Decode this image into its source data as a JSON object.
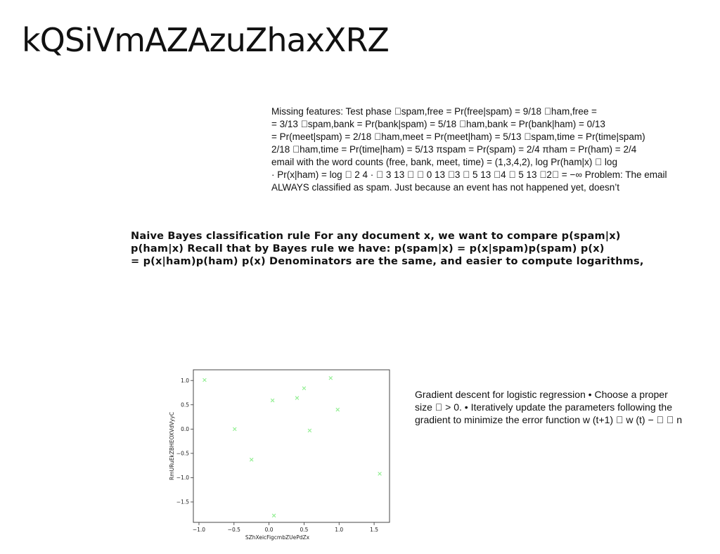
{
  "page": {
    "title": "kQSiVmAZAzuZhaxXRZ"
  },
  "block_missing_features": {
    "lines": [
      "Missing features: Test phase \u0000spam,free = Pr(free|spam) = 9/18 \u0000ham,free =",
      "= 3/13 \u0000spam,bank = Pr(bank|spam) = 5/18 \u0000ham,bank = Pr(bank|ham) = 0/13",
      "= Pr(meet|spam) = 2/18 \u0000ham,meet = Pr(meet|ham) = 5/13 \u0000spam,time = Pr(time|spam)",
      "2/18 \u0000ham,time = Pr(time|ham) = 5/13 πspam = Pr(spam) = 2/4 πham = Pr(ham) = 2/4",
      "email with the word counts (free, bank, meet, time) = (1,3,4,2), log Pr(ham|x) \u0000 log",
      "· Pr(x|ham) = log \u0000 2 4 · \u0000 3 13 \u0000 \u0000 0 13 \u00003 \u0000 5 13 \u00004 \u0000 5 13 \u00002\u0000 = −∞ Problem: The email",
      "ALWAYS classified as spam. Just because an event has not happened yet, doesn’t"
    ]
  },
  "block_naive_bayes": {
    "lines": [
      "Naive Bayes classification rule For any document x, we want to compare p(spam|x)",
      "p(ham|x) Recall that by Bayes rule we have: p(spam|x) = p(x|spam)p(spam) p(x)",
      "= p(x|ham)p(ham) p(x) Denominators are the same, and easier to compute logarithms,"
    ]
  },
  "block_gradient": {
    "lines": [
      "Gradient descent for logistic regression • Choose a proper",
      "size \u0000 > 0. • Iteratively update the parameters following the",
      "gradient to minimize the error function w (t+1) \u0000 w (t) − \u0000 \u0000 n"
    ]
  },
  "chart_data": {
    "type": "scatter",
    "xlabel": "SZhXeicFigcmbZUePdZx",
    "ylabel": "RmURuEkZBHEOXVdVyyC",
    "xlim": [
      -1.08,
      1.72
    ],
    "ylim": [
      -1.92,
      1.22
    ],
    "xticks": [
      -1.0,
      -0.5,
      0.0,
      0.5,
      1.0,
      1.5
    ],
    "xtick_labels": [
      "−1.0",
      "−0.5",
      "0.0",
      "0.5",
      "1.0",
      "1.5"
    ],
    "yticks": [
      1.0,
      0.5,
      0.0,
      -0.5,
      -1.0,
      -1.5
    ],
    "ytick_labels": [
      "1.0",
      "0.5",
      "0.0",
      "−0.5",
      "−1.0",
      "−1.5"
    ],
    "marker": "x",
    "color": "#90ee90",
    "grid": false,
    "x": [
      -0.92,
      -0.49,
      -0.25,
      0.05,
      0.07,
      0.4,
      0.5,
      0.58,
      0.88,
      0.98,
      1.58
    ],
    "y": [
      1.01,
      0.0,
      -0.63,
      0.59,
      -1.78,
      0.64,
      0.84,
      -0.03,
      1.05,
      0.4,
      -0.92
    ]
  }
}
